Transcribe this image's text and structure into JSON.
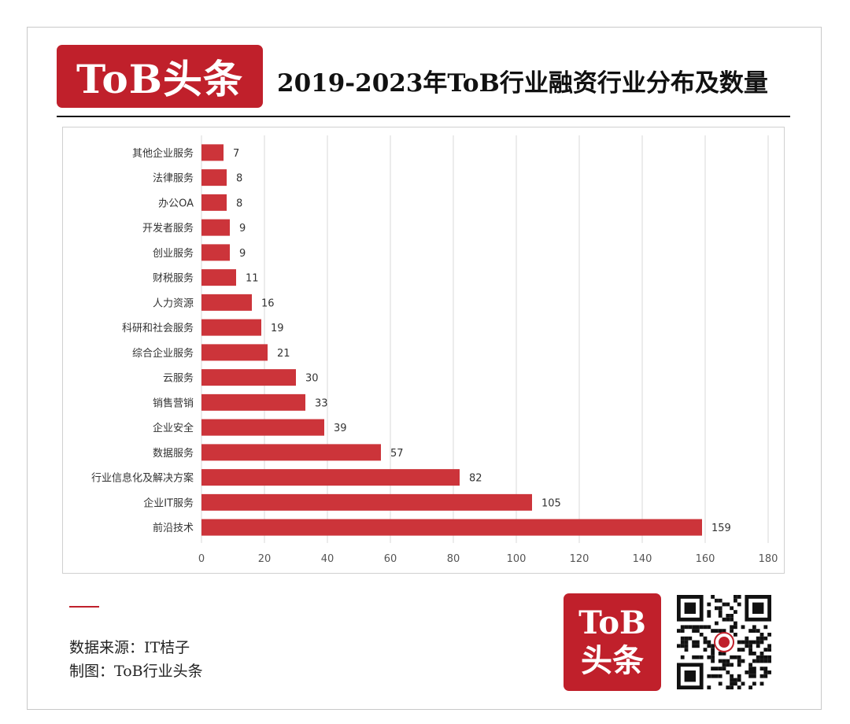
{
  "header": {
    "logo_text": "ToB头条",
    "title": "2019-2023年ToB行业融资行业分布及数量"
  },
  "chart_data": {
    "type": "bar",
    "orientation": "horizontal",
    "title": "2019-2023年ToB行业融资行业分布及数量",
    "xlabel": "",
    "ylabel": "",
    "xlim": [
      0,
      180
    ],
    "x_ticks": [
      0,
      20,
      40,
      60,
      80,
      100,
      120,
      140,
      160,
      180
    ],
    "grid": "vertical",
    "bar_color": "#cc343a",
    "categories": [
      "其他企业服务",
      "法律服务",
      "办公OA",
      "开发者服务",
      "创业服务",
      "财税服务",
      "人力资源",
      "科研和社会服务",
      "综合企业服务",
      "云服务",
      "销售营销",
      "企业安全",
      "数据服务",
      "行业信息化及解决方案",
      "企业IT服务",
      "前沿技术"
    ],
    "values": [
      7,
      8,
      8,
      9,
      9,
      11,
      16,
      19,
      21,
      30,
      33,
      39,
      57,
      82,
      105,
      159
    ]
  },
  "footer": {
    "source": "数据来源：IT桔子",
    "maker": "制图：ToB行业头条",
    "logo_line1": "ToB",
    "logo_line2": "头条",
    "qr_icon": "qr-code-icon"
  },
  "colors": {
    "brand_red": "#c0202b",
    "bar": "#cc343a"
  }
}
